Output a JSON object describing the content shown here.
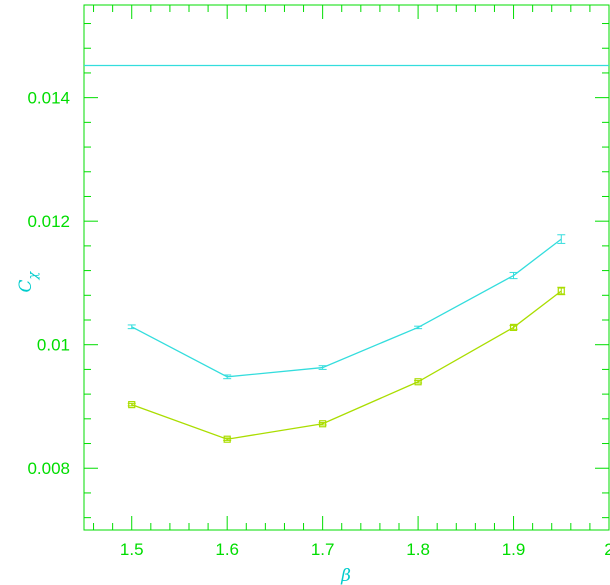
{
  "chart_data": {
    "type": "line",
    "xlabel": "β",
    "ylabel": "C",
    "ylabel_subscript": "χ",
    "xlim": [
      1.45,
      2.0
    ],
    "ylim": [
      0.007,
      0.0155
    ],
    "xticks": [
      {
        "value": 1.5,
        "label": "1.5"
      },
      {
        "value": 1.6,
        "label": "1.6"
      },
      {
        "value": 1.7,
        "label": "1.7"
      },
      {
        "value": 1.8,
        "label": "1.8"
      },
      {
        "value": 1.9,
        "label": "1.9"
      },
      {
        "value": 2.0,
        "label": "2"
      }
    ],
    "yticks": [
      {
        "value": 0.008,
        "label": "0.008"
      },
      {
        "value": 0.01,
        "label": "0.01"
      },
      {
        "value": 0.012,
        "label": "0.012"
      },
      {
        "value": 0.014,
        "label": "0.014"
      }
    ],
    "reference_line": {
      "y": 0.01452,
      "color": "#33dddd"
    },
    "series": [
      {
        "color": "#33dddd",
        "marker": "errorbar",
        "x": [
          1.5,
          1.6,
          1.7,
          1.8,
          1.9,
          1.95
        ],
        "y": [
          0.01029,
          0.00948,
          0.00963,
          0.01028,
          0.01112,
          0.01171
        ],
        "err": [
          3e-05,
          3e-05,
          3e-05,
          2e-05,
          5e-05,
          7e-05
        ]
      },
      {
        "color": "#aadd00",
        "marker": "square",
        "x": [
          1.5,
          1.6,
          1.7,
          1.8,
          1.9,
          1.95
        ],
        "y": [
          0.00903,
          0.00847,
          0.00872,
          0.0094,
          0.01028,
          0.01087
        ],
        "err": [
          2e-05,
          2e-05,
          2e-05,
          2e-05,
          3e-05,
          6e-05
        ]
      }
    ],
    "colors": {
      "axis": "#00dd00",
      "ylabel": "#00cccc",
      "xlabel": "#00cccc"
    }
  }
}
